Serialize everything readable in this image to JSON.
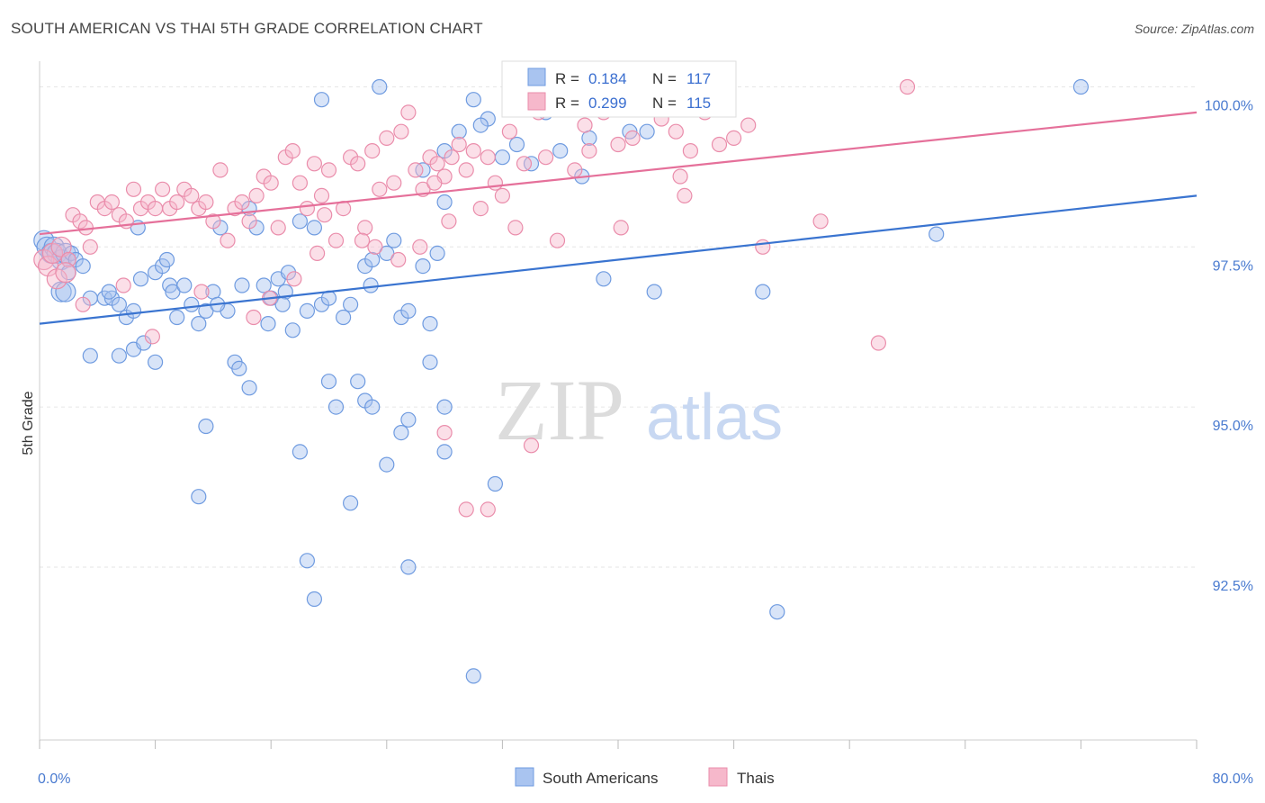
{
  "title": "SOUTH AMERICAN VS THAI 5TH GRADE CORRELATION CHART",
  "source": "Source: ZipAtlas.com",
  "watermark": {
    "zip": "ZIP",
    "atlas": "atlas"
  },
  "colors": {
    "blue_fill": "#a9c4f0",
    "blue_stroke": "#6f9be0",
    "blue_line": "#3a74d0",
    "pink_fill": "#f6b8cb",
    "pink_stroke": "#ea8dab",
    "pink_line": "#e5709a",
    "tick_text": "#4a7bd0",
    "grid": "#e6e6e6"
  },
  "stats": [
    {
      "r_label": "R =",
      "r_value": "0.184",
      "n_label": "N =",
      "n_value": "117"
    },
    {
      "r_label": "R =",
      "r_value": "0.299",
      "n_label": "N =",
      "n_value": "115"
    }
  ],
  "chart_data": {
    "type": "scatter",
    "xlabel": "",
    "ylabel": "5th Grade",
    "xlim": [
      0,
      80
    ],
    "ylim": [
      89.8,
      100.4
    ],
    "x_tick_labels": [
      {
        "value": 0,
        "label": "0.0%"
      },
      {
        "value": 80,
        "label": "80.0%"
      }
    ],
    "y_tick_labels": [
      {
        "value": 100,
        "label": "100.0%"
      },
      {
        "value": 97.5,
        "label": "97.5%"
      },
      {
        "value": 95,
        "label": "95.0%"
      },
      {
        "value": 92.5,
        "label": "92.5%"
      }
    ],
    "grid": true,
    "legend_position": "bottom-center",
    "series": [
      {
        "name": "South Americans",
        "color": "#a9c4f0",
        "trend": {
          "x": [
            0,
            80
          ],
          "y": [
            96.3,
            98.3
          ]
        },
        "points": [
          [
            0.3,
            97.6
          ],
          [
            0.5,
            97.5
          ],
          [
            0.8,
            97.4
          ],
          [
            1.0,
            97.5
          ],
          [
            1.2,
            97.4
          ],
          [
            1.5,
            97.3
          ],
          [
            1.8,
            97.4
          ],
          [
            2.0,
            97.3
          ],
          [
            2.2,
            97.4
          ],
          [
            2.5,
            97.3
          ],
          [
            1.5,
            96.8
          ],
          [
            1.8,
            96.8
          ],
          [
            3.0,
            97.2
          ],
          [
            3.5,
            96.7
          ],
          [
            4.5,
            96.7
          ],
          [
            5.0,
            96.7
          ],
          [
            5.5,
            96.6
          ],
          [
            4.8,
            96.8
          ],
          [
            6.0,
            96.4
          ],
          [
            6.5,
            96.5
          ],
          [
            7.0,
            97.0
          ],
          [
            6.8,
            97.8
          ],
          [
            8.0,
            97.1
          ],
          [
            8.5,
            97.2
          ],
          [
            9.0,
            96.9
          ],
          [
            9.2,
            96.8
          ],
          [
            9.5,
            96.4
          ],
          [
            10.5,
            96.6
          ],
          [
            11.0,
            96.3
          ],
          [
            11.5,
            96.5
          ],
          [
            12.0,
            96.8
          ],
          [
            12.5,
            97.8
          ],
          [
            13.0,
            96.5
          ],
          [
            14.0,
            96.9
          ],
          [
            14.5,
            98.1
          ],
          [
            15.0,
            97.8
          ],
          [
            15.5,
            96.9
          ],
          [
            16.0,
            96.7
          ],
          [
            16.5,
            97.0
          ],
          [
            17.0,
            96.8
          ],
          [
            17.5,
            96.2
          ],
          [
            18.0,
            97.9
          ],
          [
            18.5,
            96.5
          ],
          [
            19.0,
            97.8
          ],
          [
            19.5,
            96.6
          ],
          [
            20.0,
            96.7
          ],
          [
            21.0,
            96.4
          ],
          [
            21.5,
            96.6
          ],
          [
            22.5,
            97.2
          ],
          [
            23.0,
            97.3
          ],
          [
            24.0,
            97.4
          ],
          [
            24.5,
            97.6
          ],
          [
            25.0,
            96.4
          ],
          [
            25.5,
            96.5
          ],
          [
            26.5,
            97.2
          ],
          [
            27.0,
            96.3
          ],
          [
            27.5,
            97.4
          ],
          [
            28.0,
            99.0
          ],
          [
            29.0,
            99.3
          ],
          [
            30.0,
            99.8
          ],
          [
            31.0,
            99.5
          ],
          [
            32.0,
            98.9
          ],
          [
            33.0,
            99.1
          ],
          [
            34.0,
            98.8
          ],
          [
            35.0,
            99.6
          ],
          [
            36.0,
            99.0
          ],
          [
            38.0,
            99.2
          ],
          [
            42.0,
            99.3
          ],
          [
            37.5,
            98.6
          ],
          [
            23.5,
            100.0
          ],
          [
            19.5,
            99.8
          ],
          [
            26.5,
            98.7
          ],
          [
            28.0,
            98.2
          ],
          [
            39.0,
            97.0
          ],
          [
            42.5,
            96.8
          ],
          [
            50.0,
            96.8
          ],
          [
            62.0,
            97.7
          ],
          [
            72.0,
            100.0
          ],
          [
            3.5,
            95.8
          ],
          [
            5.5,
            95.8
          ],
          [
            6.5,
            95.9
          ],
          [
            7.2,
            96.0
          ],
          [
            8.0,
            95.7
          ],
          [
            13.5,
            95.7
          ],
          [
            13.8,
            95.6
          ],
          [
            14.5,
            95.3
          ],
          [
            20.0,
            95.4
          ],
          [
            20.5,
            95.0
          ],
          [
            22.0,
            95.4
          ],
          [
            22.5,
            95.1
          ],
          [
            23.0,
            95.0
          ],
          [
            25.5,
            94.8
          ],
          [
            27.0,
            95.7
          ],
          [
            28.0,
            95.0
          ],
          [
            25.0,
            94.6
          ],
          [
            28.0,
            94.3
          ],
          [
            18.0,
            94.3
          ],
          [
            11.5,
            94.7
          ],
          [
            24.0,
            94.1
          ],
          [
            31.5,
            93.8
          ],
          [
            11.0,
            93.6
          ],
          [
            21.5,
            93.5
          ],
          [
            18.5,
            92.6
          ],
          [
            25.5,
            92.5
          ],
          [
            19.0,
            92.0
          ],
          [
            51.0,
            91.8
          ],
          [
            30.0,
            90.8
          ],
          [
            2.0,
            97.1
          ],
          [
            10.0,
            96.9
          ],
          [
            15.8,
            96.3
          ],
          [
            12.3,
            96.6
          ],
          [
            16.8,
            96.6
          ],
          [
            30.5,
            99.4
          ],
          [
            40.8,
            99.3
          ],
          [
            8.8,
            97.3
          ],
          [
            17.2,
            97.1
          ],
          [
            22.9,
            96.9
          ]
        ]
      },
      {
        "name": "Thais",
        "color": "#f6b8cb",
        "trend": {
          "x": [
            0,
            80
          ],
          "y": [
            97.7,
            99.6
          ]
        },
        "points": [
          [
            0.3,
            97.3
          ],
          [
            0.6,
            97.2
          ],
          [
            0.9,
            97.4
          ],
          [
            1.2,
            97.0
          ],
          [
            1.5,
            97.5
          ],
          [
            2.0,
            97.3
          ],
          [
            2.3,
            98.0
          ],
          [
            2.8,
            97.9
          ],
          [
            3.2,
            97.8
          ],
          [
            3.5,
            97.5
          ],
          [
            4.0,
            98.2
          ],
          [
            4.5,
            98.1
          ],
          [
            5.0,
            98.2
          ],
          [
            5.5,
            98.0
          ],
          [
            6.0,
            97.9
          ],
          [
            6.5,
            98.4
          ],
          [
            7.0,
            98.1
          ],
          [
            7.5,
            98.2
          ],
          [
            8.0,
            98.1
          ],
          [
            8.5,
            98.4
          ],
          [
            9.0,
            98.1
          ],
          [
            9.5,
            98.2
          ],
          [
            10.0,
            98.4
          ],
          [
            10.5,
            98.3
          ],
          [
            11.0,
            98.1
          ],
          [
            11.5,
            98.2
          ],
          [
            12.0,
            97.9
          ],
          [
            12.5,
            98.7
          ],
          [
            13.0,
            97.6
          ],
          [
            13.5,
            98.1
          ],
          [
            14.0,
            98.2
          ],
          [
            14.5,
            97.9
          ],
          [
            15.0,
            98.3
          ],
          [
            15.5,
            98.6
          ],
          [
            16.0,
            98.5
          ],
          [
            16.5,
            97.8
          ],
          [
            17.0,
            98.9
          ],
          [
            17.5,
            99.0
          ],
          [
            18.0,
            98.5
          ],
          [
            18.5,
            98.1
          ],
          [
            19.0,
            98.8
          ],
          [
            19.5,
            98.3
          ],
          [
            20.0,
            98.7
          ],
          [
            20.5,
            97.6
          ],
          [
            21.0,
            98.1
          ],
          [
            21.5,
            98.9
          ],
          [
            22.0,
            98.8
          ],
          [
            22.5,
            97.8
          ],
          [
            23.0,
            99.0
          ],
          [
            23.5,
            98.4
          ],
          [
            24.0,
            99.2
          ],
          [
            24.5,
            98.5
          ],
          [
            25.0,
            99.3
          ],
          [
            25.5,
            99.6
          ],
          [
            26.0,
            98.7
          ],
          [
            26.5,
            98.4
          ],
          [
            27.0,
            98.9
          ],
          [
            27.5,
            98.8
          ],
          [
            28.0,
            98.6
          ],
          [
            28.5,
            98.9
          ],
          [
            29.0,
            99.1
          ],
          [
            29.5,
            98.7
          ],
          [
            30.0,
            99.0
          ],
          [
            30.5,
            98.1
          ],
          [
            31.0,
            98.9
          ],
          [
            31.5,
            98.5
          ],
          [
            32.0,
            98.3
          ],
          [
            32.5,
            99.3
          ],
          [
            33.5,
            98.8
          ],
          [
            34.5,
            99.6
          ],
          [
            35.0,
            98.9
          ],
          [
            36.0,
            99.8
          ],
          [
            37.0,
            98.7
          ],
          [
            38.0,
            99.0
          ],
          [
            39.0,
            99.6
          ],
          [
            40.0,
            99.1
          ],
          [
            41.0,
            99.2
          ],
          [
            43.0,
            99.5
          ],
          [
            44.0,
            99.3
          ],
          [
            45.0,
            99.0
          ],
          [
            1.8,
            97.1
          ],
          [
            3.0,
            96.6
          ],
          [
            5.8,
            96.9
          ],
          [
            7.8,
            96.1
          ],
          [
            11.2,
            96.8
          ],
          [
            14.8,
            96.4
          ],
          [
            15.9,
            96.7
          ],
          [
            17.6,
            97.0
          ],
          [
            19.2,
            97.4
          ],
          [
            22.3,
            97.6
          ],
          [
            24.8,
            97.3
          ],
          [
            26.3,
            97.5
          ],
          [
            28.3,
            97.9
          ],
          [
            32.9,
            97.8
          ],
          [
            35.8,
            97.6
          ],
          [
            40.2,
            97.8
          ],
          [
            50.0,
            97.5
          ],
          [
            54.0,
            97.9
          ],
          [
            58.0,
            96.0
          ],
          [
            46.0,
            99.6
          ],
          [
            47.0,
            99.1
          ],
          [
            48.0,
            99.2
          ],
          [
            49.0,
            99.4
          ],
          [
            60.0,
            100.0
          ],
          [
            28.0,
            94.6
          ],
          [
            34.0,
            94.4
          ],
          [
            29.5,
            93.4
          ],
          [
            31.0,
            93.4
          ],
          [
            43.5,
            99.7
          ],
          [
            37.7,
            99.4
          ],
          [
            44.3,
            98.6
          ],
          [
            44.6,
            98.3
          ],
          [
            27.3,
            98.5
          ],
          [
            23.2,
            97.5
          ],
          [
            19.7,
            98.0
          ]
        ]
      }
    ]
  },
  "legend": {
    "items": [
      "South Americans",
      "Thais"
    ]
  }
}
